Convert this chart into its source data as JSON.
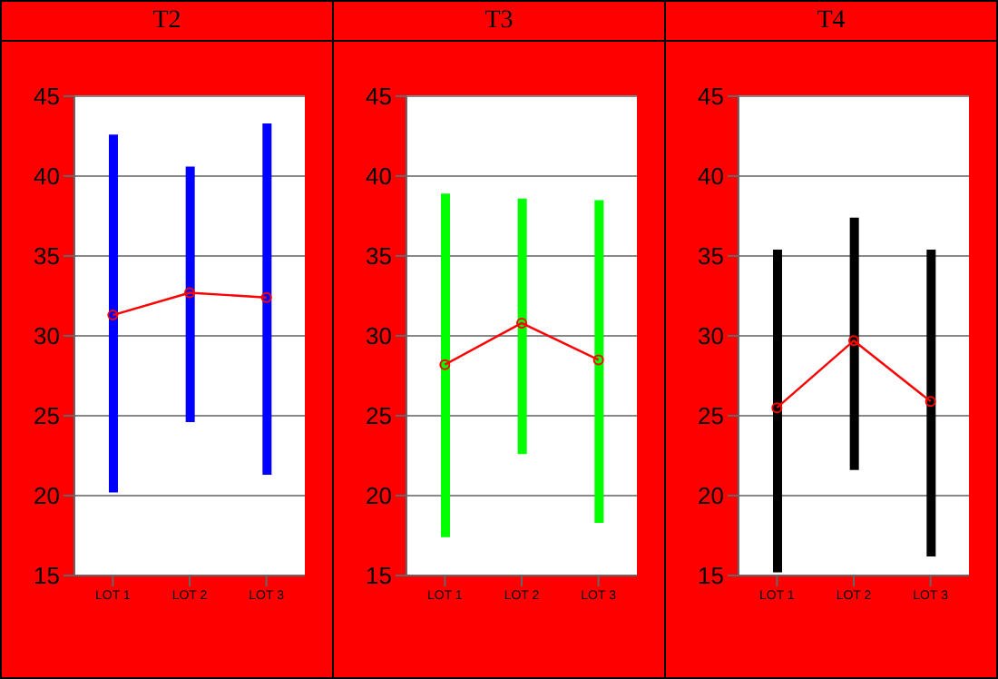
{
  "chart_data": [
    {
      "type": "line",
      "title": "T2",
      "categories": [
        "LOT 1",
        "LOT 2",
        "LOT 3"
      ],
      "ylim": [
        15,
        45
      ],
      "yticks": [
        15,
        20,
        25,
        30,
        35,
        40,
        45
      ],
      "grid": "y",
      "marker": "circle",
      "line_style": "solid",
      "series": [
        {
          "type": "bar",
          "color": "#0000ff",
          "base": [
            20.2,
            24.6,
            21.3
          ],
          "values": [
            22.4,
            16.0,
            22.0
          ]
        },
        {
          "color": "#ff0000",
          "values": [
            31.3,
            32.7,
            32.4
          ]
        }
      ]
    },
    {
      "type": "line",
      "title": "T3",
      "categories": [
        "LOT 1",
        "LOT 2",
        "LOT 3"
      ],
      "ylim": [
        15,
        45
      ],
      "yticks": [
        15,
        20,
        25,
        30,
        35,
        40,
        45
      ],
      "grid": "y",
      "marker": "circle",
      "line_style": "solid",
      "series": [
        {
          "type": "bar",
          "color": "#00ff00",
          "base": [
            17.4,
            22.6,
            18.3
          ],
          "values": [
            21.5,
            16.0,
            20.2
          ]
        },
        {
          "color": "#ff0000",
          "values": [
            28.2,
            30.8,
            28.5
          ]
        }
      ]
    },
    {
      "type": "line",
      "title": "T4",
      "categories": [
        "LOT 1",
        "LOT 2",
        "LOT 3"
      ],
      "ylim": [
        15,
        45
      ],
      "yticks": [
        15,
        20,
        25,
        30,
        35,
        40,
        45
      ],
      "grid": "y",
      "marker": "circle",
      "line_style": "solid",
      "series": [
        {
          "type": "bar",
          "color": "#000000",
          "base": [
            15.2,
            21.6,
            16.2
          ],
          "values": [
            20.2,
            15.8,
            19.2
          ]
        },
        {
          "color": "#ff0000",
          "values": [
            25.5,
            29.7,
            25.9
          ]
        }
      ]
    }
  ]
}
